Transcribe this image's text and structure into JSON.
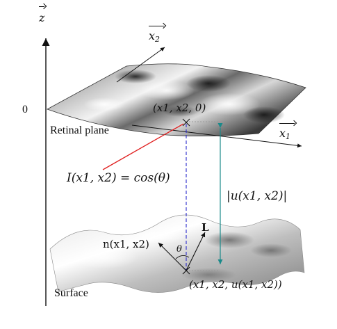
{
  "axes": {
    "z_label": "z",
    "x1_label": "x",
    "x1_sub": "1",
    "x2_label": "x",
    "x2_sub": "2",
    "zero_label": "0"
  },
  "labels": {
    "point_plane": "(x1, x2, 0)",
    "retinal_plane": "Retinal plane",
    "intensity": "I(x1, x2) = cos(θ)",
    "depth": "|u(x1, x2)|",
    "normal": "n(x1, x2)",
    "light": "L",
    "theta": "θ",
    "surface": "Surface",
    "point_surface": "(x1, x2, u(x1, x2))"
  },
  "colors": {
    "pointer_line": "#e02020",
    "depth_arrow": "#1a8a8a",
    "projection_dash": "#2a2acc",
    "guide_dots": "#999999"
  }
}
